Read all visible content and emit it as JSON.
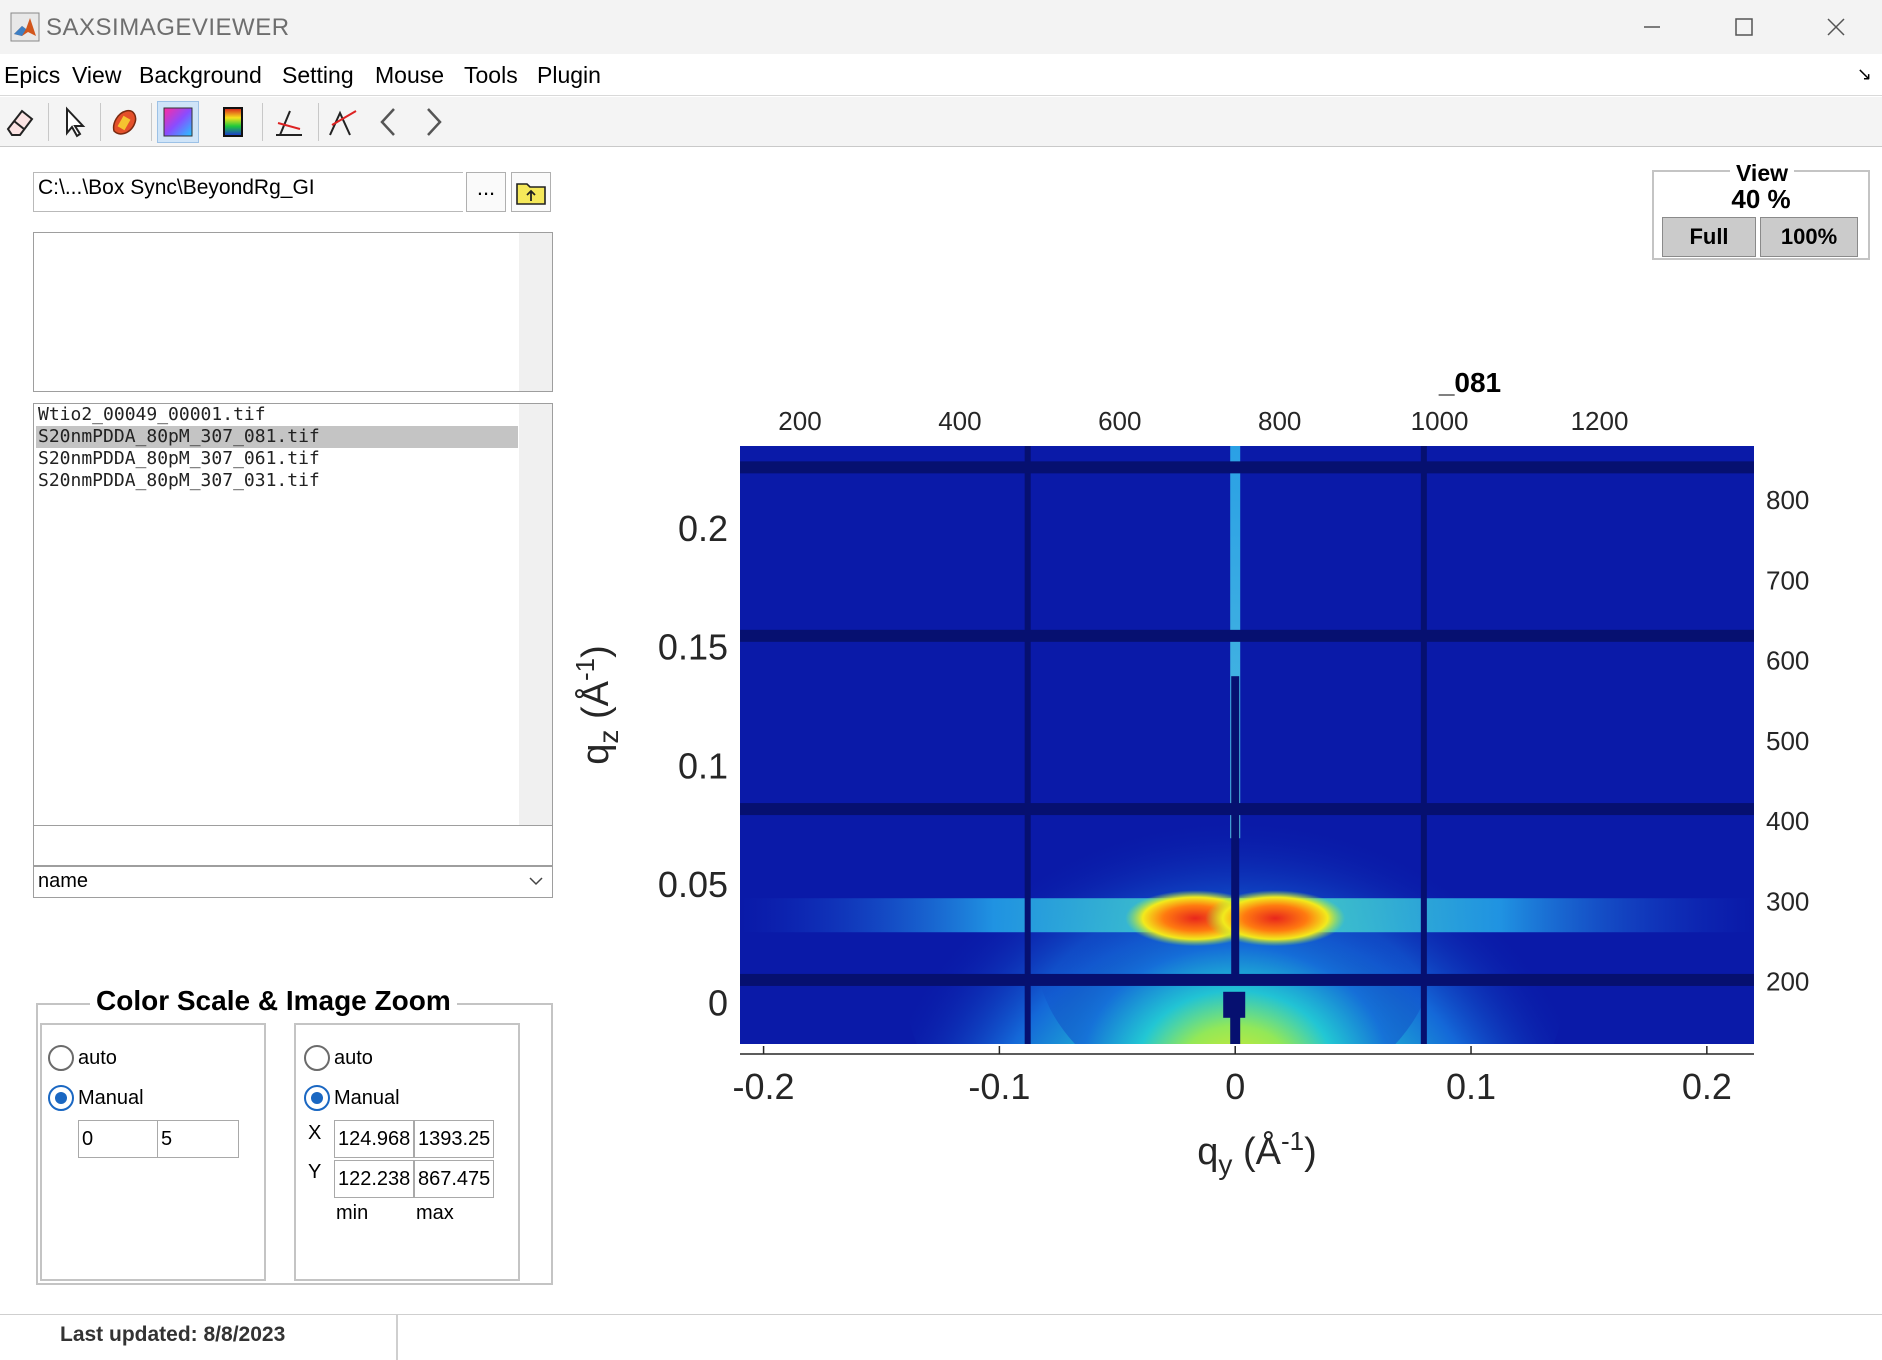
{
  "window": {
    "title": "SAXSIMAGEVIEWER"
  },
  "menu": [
    "Epics",
    "View",
    "Background",
    "Setting",
    "Mouse",
    "Tools",
    "Plugin"
  ],
  "toolbar": {
    "buttons": [
      "eraser-icon",
      "pointer-icon",
      "mask-brush-icon",
      "colormap-icon",
      "colorbar-icon",
      "line-cut-icon",
      "peak-icon",
      "back-icon",
      "forward-icon"
    ],
    "pressed": [
      "colormap-icon"
    ]
  },
  "file_browser": {
    "path": "C:\\...\\Box Sync\\BeyondRg_GI",
    "browse_label": "...",
    "files": [
      "Wtio2_00049_00001.tif",
      "S20nmPDDA_80pM_307_081.tif",
      "S20nmPDDA_80pM_307_061.tif",
      "S20nmPDDA_80pM_307_031.tif"
    ],
    "selected_index": 1,
    "sort_by": "name"
  },
  "color_scale": {
    "title": "Color Scale & Image Zoom",
    "scale": {
      "auto_label": "auto",
      "manual_label": "Manual",
      "mode": "Manual",
      "min": "0",
      "max": "5"
    },
    "zoom": {
      "auto_label": "auto",
      "manual_label": "Manual",
      "mode": "Manual",
      "x_label": "X",
      "y_label": "Y",
      "x_min": "124.968",
      "x_max": "1393.25",
      "y_min": "122.238",
      "y_max": "867.475",
      "min_label": "min",
      "max_label": "max"
    }
  },
  "view": {
    "title": "View",
    "zoom": "40 %",
    "full_label": "Full",
    "hundred_label": "100%"
  },
  "status": {
    "text": "Last updated: 8/8/2023"
  },
  "chart_data": {
    "type": "heatmap",
    "title": "_081",
    "colormap": "jet",
    "image_colors": {
      "background": "#0a1aa8",
      "detector_gap": "#061070",
      "peak": "#e8261c"
    },
    "xlabel_main": "q",
    "xlabel_sub": "y",
    "xlabel_unit_pre": "(Å",
    "xlabel_unit_exp": "-1",
    "xlabel_unit_post": ")",
    "ylabel_main": "q",
    "ylabel_sub": "z",
    "ylabel_unit_pre": "(Å",
    "ylabel_unit_exp": "-1",
    "ylabel_unit_post": ")",
    "bottom_axis": {
      "range": [
        -0.21,
        0.22
      ],
      "ticks": [
        -0.2,
        -0.1,
        0,
        0.1,
        0.2
      ],
      "tick_labels": [
        "-0.2",
        "-0.1",
        "0",
        "0.1",
        "0.2"
      ]
    },
    "left_axis": {
      "range": [
        -0.017,
        0.235
      ],
      "ticks": [
        0,
        0.05,
        0.1,
        0.15,
        0.2
      ],
      "tick_labels": [
        "0",
        "0.05",
        "0.1",
        "0.15",
        "0.2"
      ]
    },
    "top_axis": {
      "range": [
        124.968,
        1393.25
      ],
      "ticks": [
        200,
        400,
        600,
        800,
        1000,
        1200
      ],
      "tick_labels": [
        "200",
        "400",
        "600",
        "800",
        "1000",
        "1200"
      ]
    },
    "right_axis": {
      "range": [
        867.475,
        122.238
      ],
      "ticks": [
        800,
        700,
        600,
        500,
        400,
        300,
        200
      ],
      "tick_labels": [
        "800",
        "700",
        "600",
        "500",
        "400",
        "300",
        "200"
      ]
    },
    "beam_center_qy": 0,
    "peak_qz": 0.036,
    "horizontal_gaps_qz": [
      0.226,
      0.155,
      0.082,
      0.01
    ],
    "vertical_gaps_qy": [
      -0.088,
      0.08
    ]
  }
}
